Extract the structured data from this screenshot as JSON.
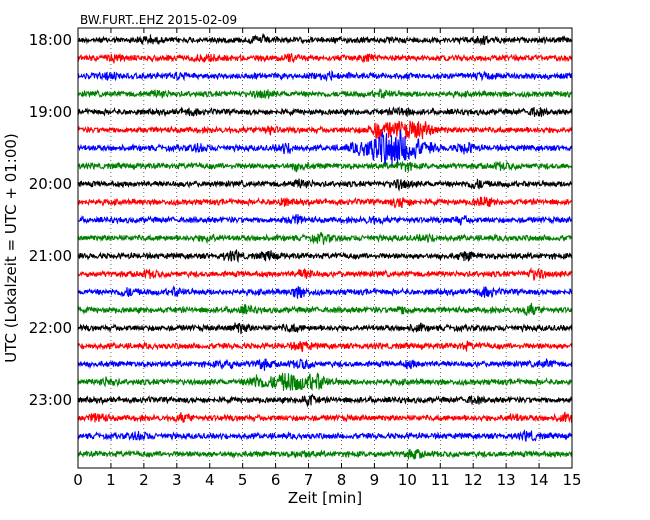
{
  "chart_data": {
    "type": "line",
    "title": "BW.FURT..EHZ 2015-02-09",
    "xlabel": "Zeit  [min]",
    "ylabel": "UTC (Lokalzeit = UTC + 01:00)",
    "xlim": [
      0,
      15
    ],
    "x_ticks": [
      0,
      1,
      2,
      3,
      4,
      5,
      6,
      7,
      8,
      9,
      10,
      11,
      12,
      13,
      14,
      15
    ],
    "y_tick_labels": [
      "18:00",
      "19:00",
      "20:00",
      "21:00",
      "22:00",
      "23:00"
    ],
    "trace_interval_min": 15,
    "grid": "vertical dotted",
    "trace_colors": [
      "#000000",
      "#ff0000",
      "#0000ff",
      "#008000"
    ],
    "traces": [
      {
        "time": "18:00",
        "events": [
          [
            2.1,
            1.0
          ],
          [
            5.5,
            1.0
          ],
          [
            12.2,
            0.9
          ]
        ]
      },
      {
        "time": "18:15",
        "events": [
          [
            1.1,
            0.9
          ],
          [
            3.9,
            0.9
          ],
          [
            6.4,
            1.2
          ],
          [
            8.8,
            0.8
          ]
        ]
      },
      {
        "time": "18:30",
        "events": [
          [
            1.0,
            0.9
          ],
          [
            3.0,
            0.8
          ],
          [
            7.6,
            1.3
          ],
          [
            12.4,
            0.8
          ]
        ]
      },
      {
        "time": "18:45",
        "events": [
          [
            2.5,
            0.9
          ],
          [
            5.6,
            1.0
          ],
          [
            9.3,
            0.9
          ]
        ]
      },
      {
        "time": "19:00",
        "events": [
          [
            3.4,
            0.8
          ],
          [
            9.8,
            1.2
          ],
          [
            13.9,
            1.0
          ]
        ]
      },
      {
        "time": "19:15",
        "events": [
          [
            5.8,
            1.0
          ],
          [
            9.1,
            1.6
          ],
          [
            9.85,
            2.4
          ],
          [
            10.5,
            1.1
          ]
        ]
      },
      {
        "time": "19:30",
        "events": [
          [
            3.7,
            1.0
          ],
          [
            6.3,
            1.4
          ],
          [
            9.2,
            2.9
          ],
          [
            9.8,
            3.9
          ],
          [
            11.8,
            1.6
          ]
        ]
      },
      {
        "time": "19:45",
        "events": [
          [
            6.7,
            1.0
          ],
          [
            9.9,
            1.0
          ],
          [
            12.9,
            0.8
          ]
        ]
      },
      {
        "time": "20:00",
        "events": [
          [
            6.8,
            1.1
          ],
          [
            9.8,
            1.3
          ],
          [
            12.1,
            1.2
          ]
        ]
      },
      {
        "time": "20:15",
        "events": [
          [
            6.2,
            0.9
          ],
          [
            9.8,
            1.5
          ],
          [
            12.3,
            1.3
          ]
        ]
      },
      {
        "time": "20:30",
        "events": [
          [
            6.6,
            1.3
          ],
          [
            9.0,
            0.8
          ],
          [
            11.6,
            0.8
          ]
        ]
      },
      {
        "time": "20:45",
        "events": [
          [
            4.0,
            0.8
          ],
          [
            7.4,
            1.2
          ],
          [
            10.6,
            0.8
          ]
        ]
      },
      {
        "time": "21:00",
        "events": [
          [
            4.7,
            1.3
          ],
          [
            5.8,
            1.1
          ],
          [
            11.8,
            1.0
          ]
        ]
      },
      {
        "time": "21:15",
        "events": [
          [
            2.2,
            0.8
          ],
          [
            6.9,
            1.2
          ],
          [
            13.9,
            1.5
          ]
        ]
      },
      {
        "time": "21:30",
        "events": [
          [
            1.5,
            1.0
          ],
          [
            3.0,
            1.0
          ],
          [
            6.7,
            1.6
          ],
          [
            12.4,
            1.3
          ]
        ]
      },
      {
        "time": "21:45",
        "events": [
          [
            5.1,
            0.9
          ],
          [
            9.9,
            0.9
          ],
          [
            13.7,
            1.4
          ]
        ]
      },
      {
        "time": "22:00",
        "events": [
          [
            4.9,
            1.3
          ],
          [
            6.5,
            1.0
          ],
          [
            10.3,
            0.8
          ]
        ]
      },
      {
        "time": "22:15",
        "events": [
          [
            6.8,
            1.3
          ],
          [
            11.8,
            0.8
          ]
        ]
      },
      {
        "time": "22:30",
        "events": [
          [
            4.5,
            1.1
          ],
          [
            5.6,
            1.2
          ],
          [
            6.8,
            1.3
          ],
          [
            10.1,
            0.8
          ],
          [
            14.2,
            0.8
          ]
        ]
      },
      {
        "time": "22:45",
        "events": [
          [
            0.9,
            1.2
          ],
          [
            5.4,
            1.6
          ],
          [
            6.5,
            2.6
          ],
          [
            7.3,
            1.5
          ]
        ]
      },
      {
        "time": "23:00",
        "events": [
          [
            7.0,
            1.4
          ],
          [
            12.0,
            0.8
          ]
        ]
      },
      {
        "time": "23:15",
        "events": [
          [
            0.6,
            1.3
          ],
          [
            3.2,
            0.9
          ],
          [
            13.2,
            0.8
          ],
          [
            14.8,
            0.9
          ]
        ]
      },
      {
        "time": "23:30",
        "events": [
          [
            1.9,
            1.2
          ],
          [
            13.7,
            1.2
          ]
        ]
      },
      {
        "time": "23:45",
        "events": [
          [
            10.2,
            1.1
          ],
          [
            6.8,
            0.8
          ]
        ]
      }
    ]
  }
}
